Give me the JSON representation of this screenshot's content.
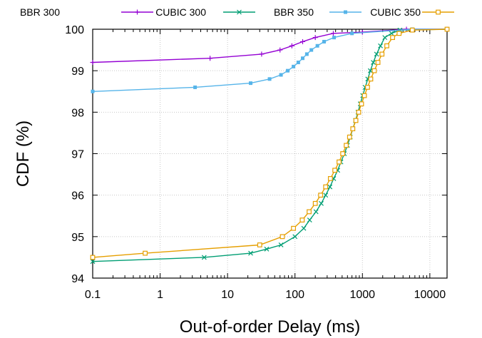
{
  "chart_data": {
    "type": "line",
    "xlabel": "Out-of-order Delay (ms)",
    "ylabel": "CDF (%)",
    "xscale": "log",
    "xlim": [
      0.1,
      18000
    ],
    "ylim": [
      94,
      100
    ],
    "x_ticks": [
      {
        "value": 0.1,
        "label": "0.1"
      },
      {
        "value": 1,
        "label": "1"
      },
      {
        "value": 10,
        "label": "10"
      },
      {
        "value": 100,
        "label": "100"
      },
      {
        "value": 1000,
        "label": "1000"
      },
      {
        "value": 10000,
        "label": "10000"
      }
    ],
    "y_ticks": [
      {
        "value": 94,
        "label": "94"
      },
      {
        "value": 95,
        "label": "95"
      },
      {
        "value": 96,
        "label": "96"
      },
      {
        "value": 97,
        "label": "97"
      },
      {
        "value": 98,
        "label": "98"
      },
      {
        "value": 99,
        "label": "99"
      },
      {
        "value": 100,
        "label": "100"
      }
    ],
    "grid": true,
    "legend_position": "top",
    "series": [
      {
        "name": "BBR 300",
        "color": "#9400d3",
        "marker": "plus",
        "points": [
          [
            0.1,
            99.2
          ],
          [
            5.5,
            99.3
          ],
          [
            32,
            99.4
          ],
          [
            60,
            99.5
          ],
          [
            90,
            99.6
          ],
          [
            130,
            99.7
          ],
          [
            200,
            99.8
          ],
          [
            370,
            99.9
          ],
          [
            1000,
            99.93
          ],
          [
            4500,
            100
          ],
          [
            18000,
            100
          ]
        ]
      },
      {
        "name": "CUBIC 300",
        "color": "#009e73",
        "marker": "x",
        "points": [
          [
            0.1,
            94.4
          ],
          [
            4.5,
            94.5
          ],
          [
            22,
            94.6
          ],
          [
            38,
            94.7
          ],
          [
            62,
            94.8
          ],
          [
            100,
            95.0
          ],
          [
            135,
            95.2
          ],
          [
            165,
            95.4
          ],
          [
            205,
            95.6
          ],
          [
            245,
            95.8
          ],
          [
            285,
            96.0
          ],
          [
            330,
            96.2
          ],
          [
            375,
            96.4
          ],
          [
            430,
            96.6
          ],
          [
            480,
            96.8
          ],
          [
            540,
            97.0
          ],
          [
            600,
            97.2
          ],
          [
            660,
            97.4
          ],
          [
            720,
            97.6
          ],
          [
            790,
            97.8
          ],
          [
            860,
            98.0
          ],
          [
            930,
            98.2
          ],
          [
            1010,
            98.4
          ],
          [
            1100,
            98.6
          ],
          [
            1200,
            98.8
          ],
          [
            1310,
            99.0
          ],
          [
            1450,
            99.2
          ],
          [
            1620,
            99.4
          ],
          [
            1850,
            99.6
          ],
          [
            2150,
            99.8
          ],
          [
            2700,
            99.9
          ],
          [
            3600,
            99.98
          ],
          [
            18000,
            100
          ]
        ]
      },
      {
        "name": "BBR 350",
        "color": "#56b4e9",
        "marker": "square-filled",
        "points": [
          [
            0.1,
            98.5
          ],
          [
            3.3,
            98.6
          ],
          [
            22,
            98.7
          ],
          [
            42,
            98.8
          ],
          [
            62,
            98.9
          ],
          [
            78,
            99.0
          ],
          [
            95,
            99.1
          ],
          [
            112,
            99.2
          ],
          [
            130,
            99.3
          ],
          [
            150,
            99.4
          ],
          [
            175,
            99.5
          ],
          [
            215,
            99.6
          ],
          [
            270,
            99.7
          ],
          [
            380,
            99.8
          ],
          [
            700,
            99.9
          ],
          [
            5500,
            100
          ],
          [
            18000,
            100
          ]
        ]
      },
      {
        "name": "CUBIC 350",
        "color": "#e69f00",
        "marker": "square-open",
        "points": [
          [
            0.1,
            94.5
          ],
          [
            0.6,
            94.6
          ],
          [
            30,
            94.8
          ],
          [
            65,
            95.0
          ],
          [
            95,
            95.2
          ],
          [
            128,
            95.4
          ],
          [
            162,
            95.6
          ],
          [
            200,
            95.8
          ],
          [
            240,
            96.0
          ],
          [
            285,
            96.2
          ],
          [
            335,
            96.4
          ],
          [
            390,
            96.6
          ],
          [
            450,
            96.8
          ],
          [
            510,
            97.0
          ],
          [
            575,
            97.2
          ],
          [
            645,
            97.4
          ],
          [
            720,
            97.6
          ],
          [
            800,
            97.8
          ],
          [
            880,
            98.0
          ],
          [
            970,
            98.2
          ],
          [
            1070,
            98.4
          ],
          [
            1190,
            98.6
          ],
          [
            1330,
            98.8
          ],
          [
            1500,
            99.0
          ],
          [
            1700,
            99.2
          ],
          [
            1950,
            99.4
          ],
          [
            2300,
            99.6
          ],
          [
            2800,
            99.8
          ],
          [
            3500,
            99.9
          ],
          [
            5500,
            99.98
          ],
          [
            18000,
            100
          ]
        ]
      }
    ]
  }
}
